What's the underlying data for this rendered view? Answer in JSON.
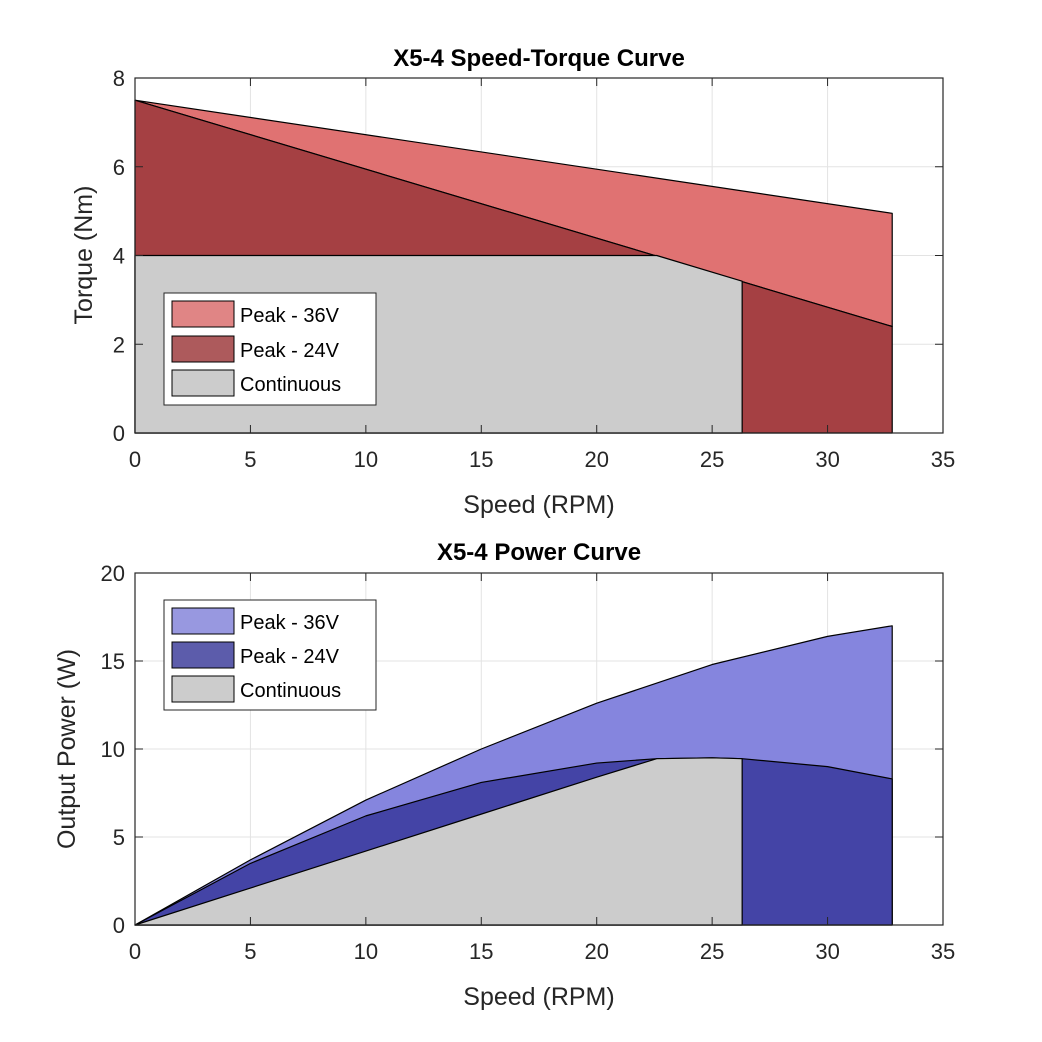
{
  "chart_data": [
    {
      "type": "area",
      "title": "X5-4 Speed-Torque Curve",
      "xlabel": "Speed (RPM)",
      "ylabel": "Torque (Nm)",
      "xlim": [
        0,
        35
      ],
      "ylim": [
        0,
        8
      ],
      "xticks": [
        "0",
        "5",
        "10",
        "15",
        "20",
        "25",
        "30",
        "35"
      ],
      "yticks": [
        "0",
        "2",
        "4",
        "6",
        "8"
      ],
      "grid": true,
      "legend_position": "bottom-left",
      "series": [
        {
          "name": "Peak - 36V",
          "color": "#e07272",
          "legend_color": "#e08585",
          "upper": {
            "x": [
              0,
              32.8
            ],
            "y": [
              7.5,
              4.95
            ]
          },
          "lower": {
            "x": [
              0,
              32.8
            ],
            "y": [
              7.5,
              2.4
            ]
          }
        },
        {
          "name": "Peak - 24V",
          "color": "#a54043",
          "legend_color": "#ad5a5c",
          "upper": {
            "x": [
              0,
              32.8
            ],
            "y": [
              7.5,
              2.4
            ]
          },
          "lower_rule": "continuous envelope below 26.3, zero beyond",
          "x_end": 32.8
        },
        {
          "name": "Continuous",
          "color": "#cccccc",
          "legend_color": "#cccccc",
          "upper": {
            "x": [
              0,
              22.6,
              26.3
            ],
            "y": [
              4.0,
              4.0,
              3.42
            ]
          },
          "x_end": 26.3
        }
      ]
    },
    {
      "type": "area",
      "title": "X5-4 Power Curve",
      "xlabel": "Speed (RPM)",
      "ylabel": "Output Power (W)",
      "xlim": [
        0,
        35
      ],
      "ylim": [
        0,
        20
      ],
      "xticks": [
        "0",
        "5",
        "10",
        "15",
        "20",
        "25",
        "30",
        "35"
      ],
      "yticks": [
        "0",
        "5",
        "10",
        "15",
        "20"
      ],
      "grid": true,
      "legend_position": "top-left",
      "series": [
        {
          "name": "Peak - 36V",
          "color": "#8585de",
          "legend_color": "#9898e0",
          "x": [
            0,
            5,
            10,
            15,
            20,
            25,
            30,
            32.8
          ],
          "y": [
            0,
            3.7,
            7.1,
            10.0,
            12.6,
            14.8,
            16.4,
            17.0
          ]
        },
        {
          "name": "Peak - 24V",
          "color": "#4444a6",
          "legend_color": "#5c5cab",
          "x": [
            0,
            5,
            10,
            15,
            20,
            22.6,
            25,
            26.3,
            30,
            32.8
          ],
          "y": [
            0,
            3.5,
            6.2,
            8.1,
            9.2,
            9.45,
            9.5,
            9.45,
            9.0,
            8.3
          ]
        },
        {
          "name": "Continuous",
          "color": "#cccccc",
          "legend_color": "#cccccc",
          "x": [
            0,
            5,
            10,
            15,
            20,
            22.6,
            25,
            26.3
          ],
          "y": [
            0,
            2.1,
            4.2,
            6.3,
            8.4,
            9.45,
            9.5,
            9.45
          ]
        }
      ]
    }
  ]
}
